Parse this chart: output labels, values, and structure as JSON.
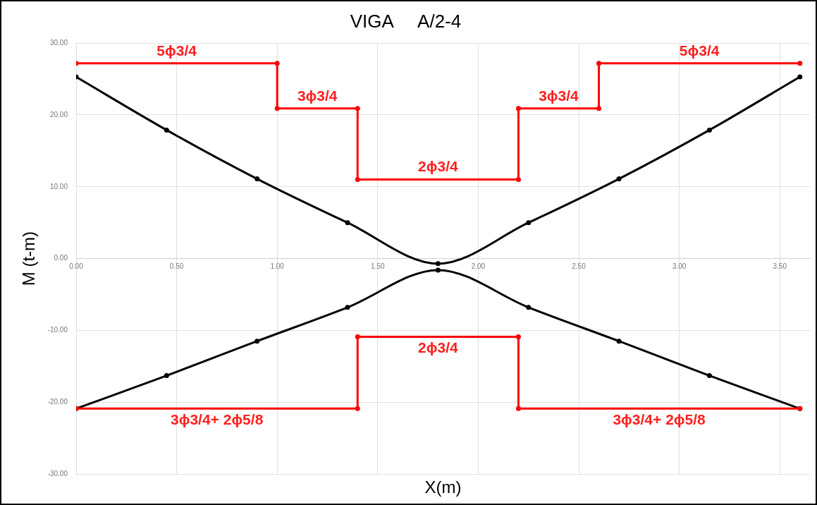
{
  "chart_data": {
    "type": "line",
    "title": "VIGA     A/2-4",
    "xlabel": "X(m)",
    "ylabel": "M (t-m)",
    "xlim": [
      0,
      3.65
    ],
    "ylim": [
      -30,
      30
    ],
    "xticks": [
      {
        "value": 0,
        "label": "0.00"
      },
      {
        "value": 0.5,
        "label": "0.50"
      },
      {
        "value": 1,
        "label": "1.00"
      },
      {
        "value": 1.5,
        "label": "1.50"
      },
      {
        "value": 2,
        "label": "2.00"
      },
      {
        "value": 2.5,
        "label": "2.50"
      },
      {
        "value": 3,
        "label": "3.00"
      },
      {
        "value": 3.5,
        "label": "3.50"
      }
    ],
    "yticks": [
      {
        "value": -30,
        "label": "-30.00"
      },
      {
        "value": -20,
        "label": "-20.00"
      },
      {
        "value": -10,
        "label": "-10.00"
      },
      {
        "value": 0,
        "label": "0.00"
      },
      {
        "value": 10,
        "label": "10.00"
      },
      {
        "value": 20,
        "label": "20.00"
      },
      {
        "value": 30,
        "label": "30.00"
      }
    ],
    "grid": true,
    "marker": "circle",
    "series": [
      {
        "color": "#000000",
        "x": [
          0,
          0.45,
          0.9,
          1.35,
          1.8,
          2.25,
          2.7,
          3.15,
          3.6
        ],
        "values": [
          25.3,
          17.9,
          11.1,
          5.0,
          -0.7,
          5.0,
          11.1,
          17.9,
          25.3
        ]
      },
      {
        "color": "#000000",
        "x": [
          0,
          0.45,
          0.9,
          1.35,
          1.8,
          2.25,
          2.7,
          3.15,
          3.6
        ],
        "values": [
          -20.9,
          -16.3,
          -11.5,
          -6.8,
          -1.6,
          -6.8,
          -11.5,
          -16.3,
          -20.9
        ]
      },
      {
        "color": "#ff0000",
        "x": [
          0,
          1.0,
          1.0,
          1.4,
          1.4,
          2.2,
          2.2,
          2.6,
          2.6,
          3.6
        ],
        "values": [
          27.2,
          27.2,
          20.9,
          20.9,
          11.0,
          11.0,
          20.9,
          20.9,
          27.2,
          27.2
        ]
      },
      {
        "color": "#ff0000",
        "x": [
          0,
          1.4,
          1.4,
          2.2,
          2.2,
          3.6
        ],
        "values": [
          -20.9,
          -20.9,
          -10.9,
          -10.9,
          -20.9,
          -20.9
        ]
      }
    ],
    "annotations": [
      {
        "text": "5ϕ3/4",
        "x": 0.5,
        "y": 27.2
      },
      {
        "text": "3ϕ3/4",
        "x": 1.2,
        "y": 20.9
      },
      {
        "text": "2ϕ3/4",
        "x": 1.8,
        "y": 11.0
      },
      {
        "text": "3ϕ3/4",
        "x": 2.4,
        "y": 20.9
      },
      {
        "text": "5ϕ3/4",
        "x": 3.1,
        "y": 27.2
      },
      {
        "text": "2ϕ3/4",
        "x": 1.8,
        "y": -10.9
      },
      {
        "text": "3ϕ3/4+ 2ϕ5/8",
        "x": 0.7,
        "y": -20.9
      },
      {
        "text": "3ϕ3/4+ 2ϕ5/8",
        "x": 2.9,
        "y": -20.9
      }
    ]
  }
}
